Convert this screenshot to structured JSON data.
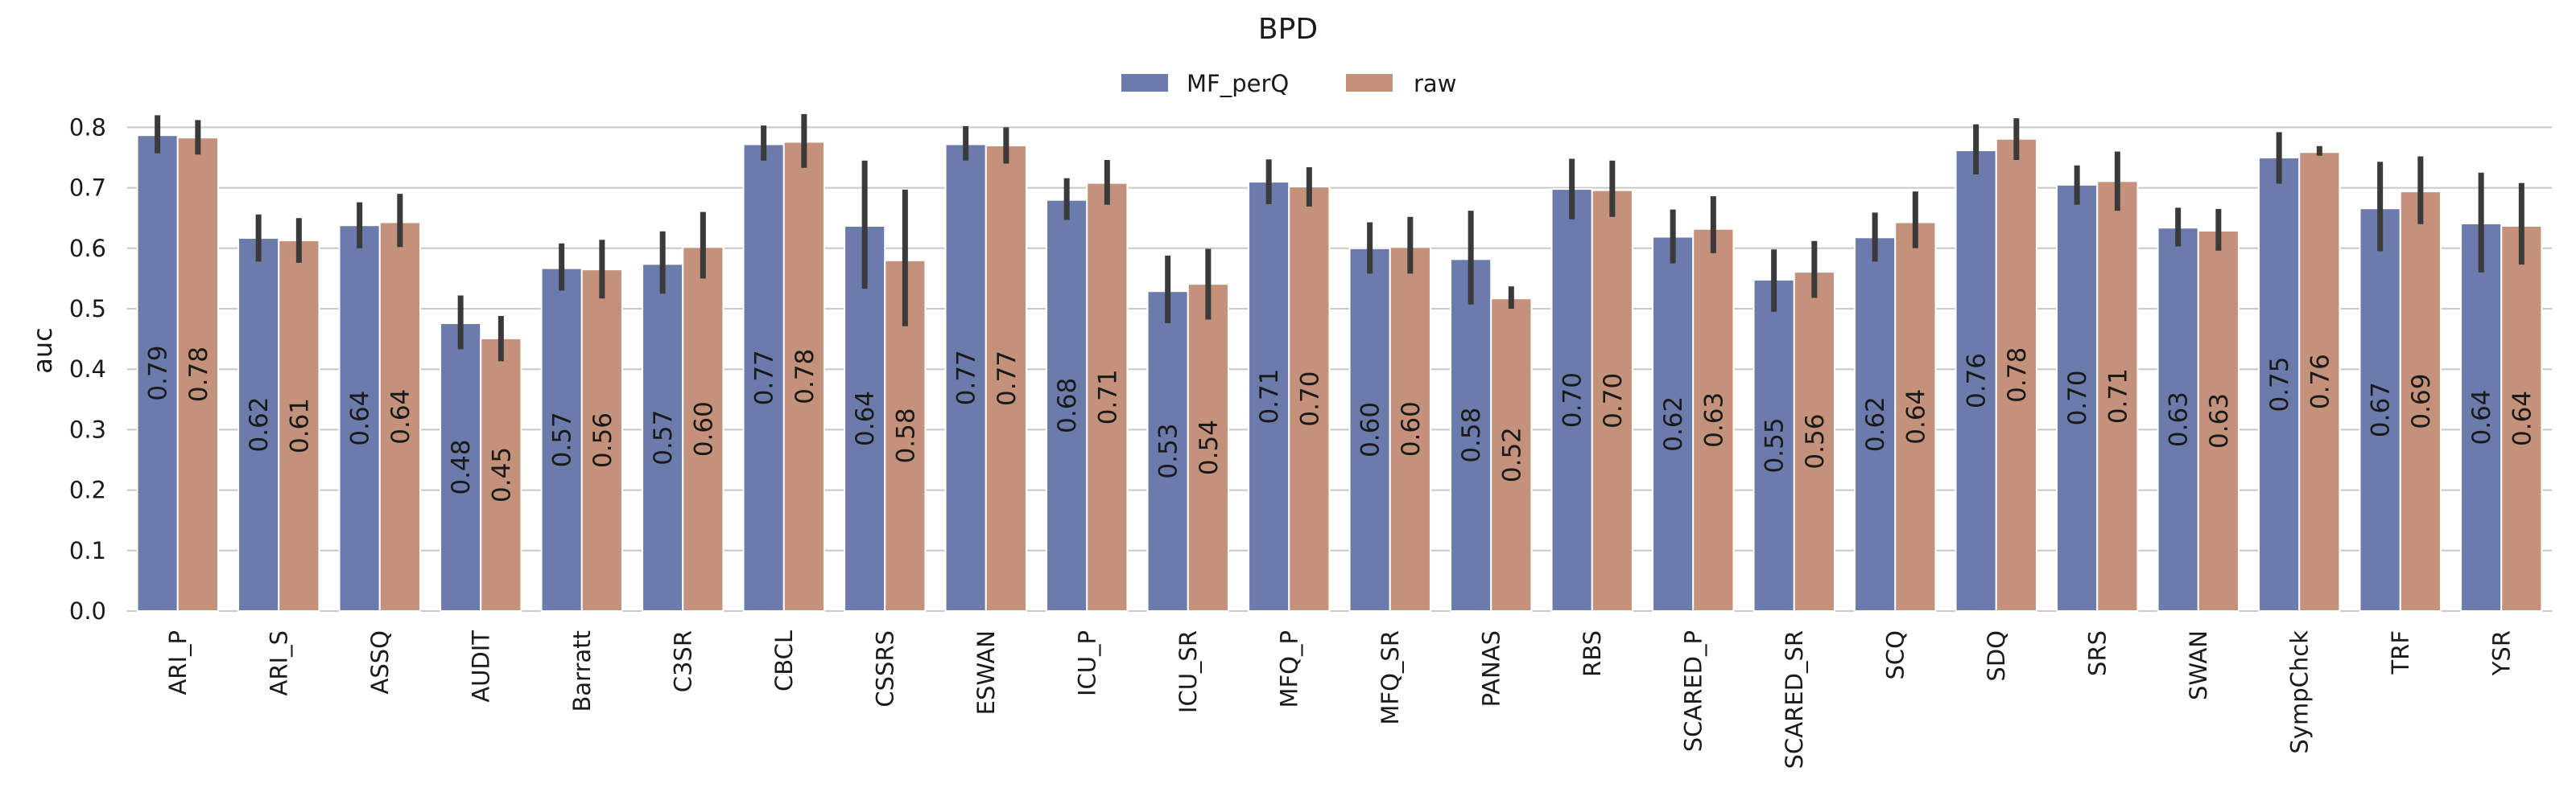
{
  "chart_data": {
    "type": "bar",
    "title": "BPD",
    "ylabel": "auc",
    "xlabel": "",
    "ylim": [
      0,
      0.82
    ],
    "yticks": [
      "0.0",
      "0.1",
      "0.2",
      "0.3",
      "0.4",
      "0.5",
      "0.6",
      "0.7",
      "0.8"
    ],
    "grid": "horizontal",
    "legend_position": "top-center",
    "colors": {
      "MF_perQ": "#6b7bab",
      "raw": "#c4917a",
      "errorbar": "#3a3a3a",
      "grid": "#c8c8c8"
    },
    "categories": [
      "ARI_P",
      "ARI_S",
      "ASSQ",
      "AUDIT",
      "Barratt",
      "C3SR",
      "CBCL",
      "CSSRS",
      "ESWAN",
      "ICU_P",
      "ICU_SR",
      "MFQ_P",
      "MFQ_SR",
      "PANAS",
      "RBS",
      "SCARED_P",
      "SCARED_SR",
      "SCQ",
      "SDQ",
      "SRS",
      "SWAN",
      "SympChck",
      "TRF",
      "YSR"
    ],
    "series": [
      {
        "name": "MF_perQ",
        "values": [
          0.787,
          0.617,
          0.638,
          0.476,
          0.567,
          0.574,
          0.772,
          0.637,
          0.772,
          0.68,
          0.529,
          0.71,
          0.6,
          0.582,
          0.698,
          0.619,
          0.548,
          0.618,
          0.762,
          0.705,
          0.634,
          0.75,
          0.666,
          0.641
        ],
        "labels": [
          "0.79",
          "0.62",
          "0.64",
          "0.48",
          "0.57",
          "0.57",
          "0.77",
          "0.64",
          "0.77",
          "0.68",
          "0.53",
          "0.71",
          "0.60",
          "0.58",
          "0.70",
          "0.62",
          "0.55",
          "0.62",
          "0.76",
          "0.70",
          "0.63",
          "0.75",
          "0.67",
          "0.64"
        ],
        "error_low": [
          0.757,
          0.578,
          0.6,
          0.433,
          0.53,
          0.525,
          0.745,
          0.533,
          0.745,
          0.647,
          0.476,
          0.673,
          0.558,
          0.507,
          0.648,
          0.575,
          0.495,
          0.578,
          0.722,
          0.672,
          0.603,
          0.707,
          0.595,
          0.56
        ],
        "error_high": [
          0.82,
          0.656,
          0.676,
          0.522,
          0.608,
          0.628,
          0.803,
          0.745,
          0.802,
          0.716,
          0.588,
          0.747,
          0.643,
          0.662,
          0.748,
          0.664,
          0.598,
          0.659,
          0.805,
          0.737,
          0.667,
          0.792,
          0.743,
          0.725
        ]
      },
      {
        "name": "raw",
        "values": [
          0.783,
          0.613,
          0.643,
          0.451,
          0.565,
          0.602,
          0.776,
          0.58,
          0.77,
          0.708,
          0.541,
          0.702,
          0.602,
          0.517,
          0.696,
          0.632,
          0.561,
          0.643,
          0.781,
          0.711,
          0.629,
          0.759,
          0.694,
          0.637
        ],
        "labels": [
          "0.78",
          "0.61",
          "0.64",
          "0.45",
          "0.56",
          "0.60",
          "0.78",
          "0.58",
          "0.77",
          "0.71",
          "0.54",
          "0.70",
          "0.60",
          "0.52",
          "0.70",
          "0.63",
          "0.56",
          "0.64",
          "0.78",
          "0.71",
          "0.63",
          "0.76",
          "0.69",
          "0.64"
        ],
        "error_low": [
          0.755,
          0.576,
          0.602,
          0.413,
          0.517,
          0.55,
          0.733,
          0.471,
          0.74,
          0.672,
          0.482,
          0.669,
          0.558,
          0.5,
          0.652,
          0.592,
          0.518,
          0.6,
          0.746,
          0.662,
          0.596,
          0.753,
          0.64,
          0.573
        ],
        "error_high": [
          0.812,
          0.65,
          0.69,
          0.488,
          0.614,
          0.66,
          0.822,
          0.697,
          0.8,
          0.746,
          0.599,
          0.734,
          0.652,
          0.537,
          0.745,
          0.686,
          0.612,
          0.694,
          0.815,
          0.76,
          0.665,
          0.769,
          0.752,
          0.708
        ]
      }
    ]
  }
}
